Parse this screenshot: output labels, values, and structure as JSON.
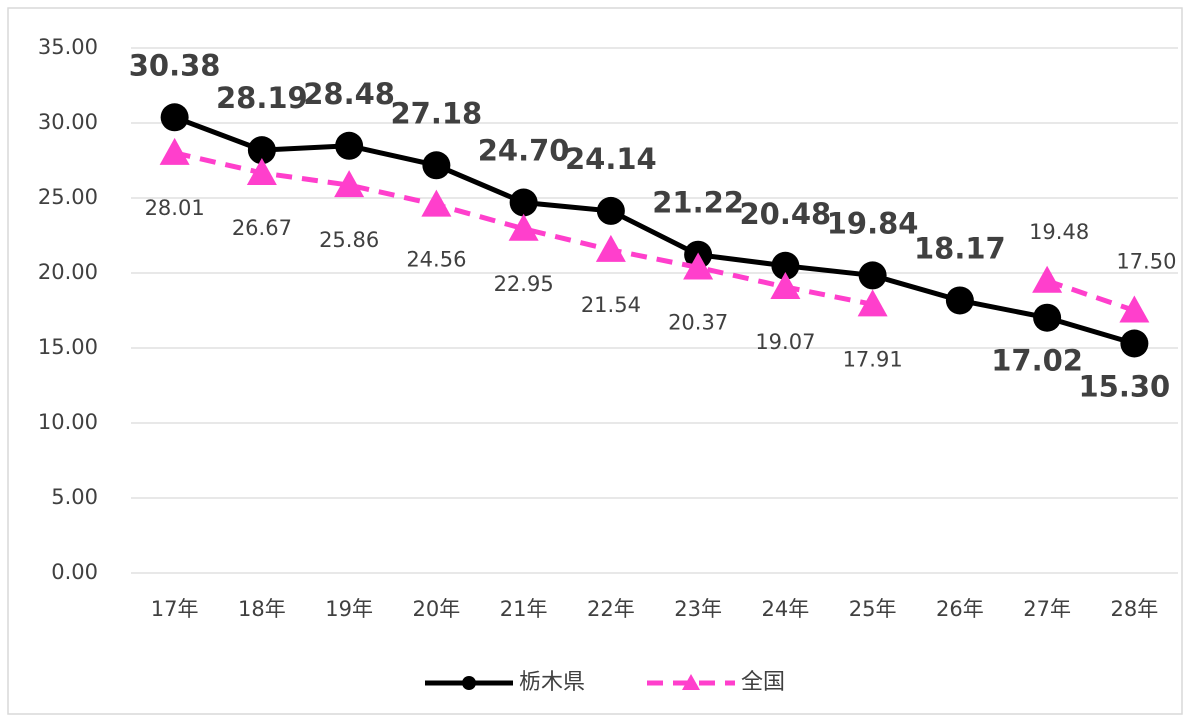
{
  "chart_data": {
    "type": "line",
    "categories": [
      "17年",
      "18年",
      "19年",
      "20年",
      "21年",
      "22年",
      "23年",
      "24年",
      "25年",
      "26年",
      "27年",
      "28年"
    ],
    "series": [
      {
        "name": "栃木県",
        "color": "#000000",
        "dash": false,
        "marker": "circle",
        "values": [
          30.38,
          28.19,
          28.48,
          27.18,
          24.7,
          24.14,
          21.22,
          20.48,
          19.84,
          18.17,
          17.02,
          15.3
        ],
        "value_labels": [
          "30.38",
          "28.19",
          "28.48",
          "27.18",
          "24.70",
          "24.14",
          "21.22",
          "20.48",
          "19.84",
          "18.17",
          "17.02",
          "15.30"
        ]
      },
      {
        "name": "全国",
        "color": "#ff3fcc",
        "dash": true,
        "marker": "triangle",
        "values": [
          28.01,
          26.67,
          25.86,
          24.56,
          22.95,
          21.54,
          20.37,
          19.07,
          17.91,
          null,
          19.48,
          17.5
        ],
        "value_labels": [
          "28.01",
          "26.67",
          "25.86",
          "24.56",
          "22.95",
          "21.54",
          "20.37",
          "19.07",
          "17.91",
          null,
          "19.48",
          "17.50"
        ]
      }
    ],
    "ylim": [
      0,
      35
    ],
    "yticks": [
      {
        "value": 0,
        "label": "0.00"
      },
      {
        "value": 5,
        "label": "5.00"
      },
      {
        "value": 10,
        "label": "10.00"
      },
      {
        "value": 15,
        "label": "15.00"
      },
      {
        "value": 20,
        "label": "20.00"
      },
      {
        "value": 25,
        "label": "25.00"
      },
      {
        "value": 30,
        "label": "30.00"
      },
      {
        "value": 35,
        "label": "35.00"
      }
    ],
    "grid": true,
    "legend": "bottom"
  }
}
